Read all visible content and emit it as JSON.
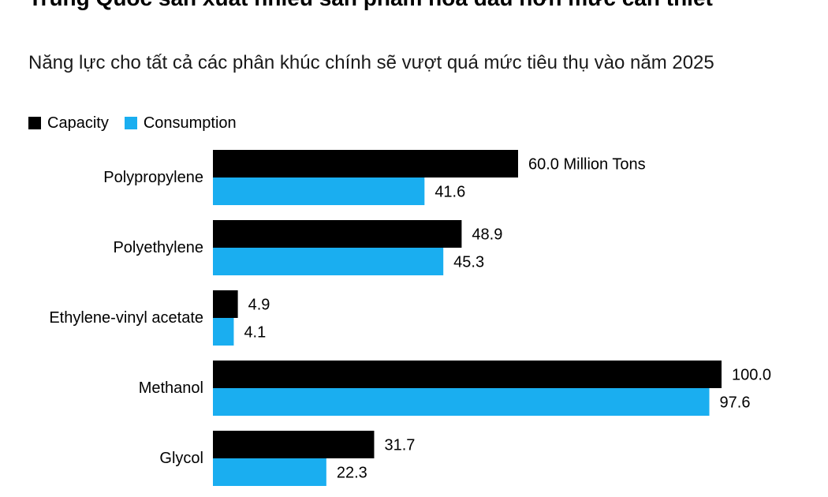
{
  "title": "Trung Quốc sản xuất nhiều sản phẩm hóa dầu hơn mức cần thiết",
  "subtitle": "Năng lực cho tất cả các phân khúc chính sẽ vượt quá mức tiêu thụ vào năm 2025",
  "colors": {
    "capacity": "#000000",
    "consumption": "#1aaef0"
  },
  "legend": [
    {
      "name": "Capacity",
      "color": "#000000"
    },
    {
      "name": "Consumption",
      "color": "#1aaef0"
    }
  ],
  "chart_data": {
    "type": "bar",
    "orientation": "horizontal",
    "title": "Trung Quốc sản xuất nhiều sản phẩm hóa dầu hơn mức cần thiết",
    "subtitle": "Năng lực cho tất cả các phân khúc chính sẽ vượt quá mức tiêu thụ vào năm 2025",
    "categories": [
      "Polypropylene",
      "Polyethylene",
      "Ethylene-vinyl acetate",
      "Methanol",
      "Glycol"
    ],
    "series": [
      {
        "name": "Capacity",
        "values": [
          60.0,
          48.9,
          4.9,
          100.0,
          31.7
        ],
        "labels": [
          "60.0 Million Tons",
          "48.9",
          "4.9",
          "100.0",
          "31.7"
        ]
      },
      {
        "name": "Consumption",
        "values": [
          41.6,
          45.3,
          4.1,
          97.6,
          22.3
        ],
        "labels": [
          "41.6",
          "45.3",
          "4.1",
          "97.6",
          "22.3"
        ]
      }
    ],
    "unit": "Million Tons",
    "xlim": [
      0,
      100
    ],
    "xlabel": "",
    "ylabel": "",
    "grid": false,
    "legend_position": "top-left"
  }
}
